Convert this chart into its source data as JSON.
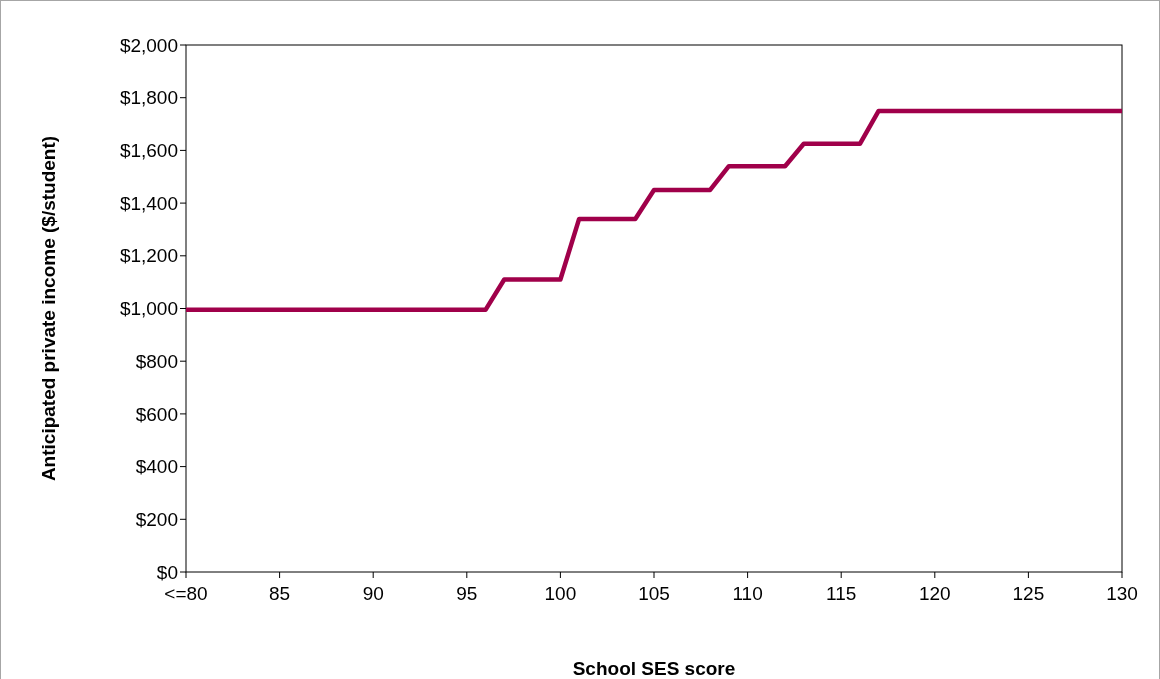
{
  "chart_data": {
    "type": "line",
    "xlabel": "School SES score",
    "ylabel": "Anticipated private income ($/student)",
    "x": [
      80,
      96,
      97,
      100,
      101,
      104,
      105,
      108,
      109,
      112,
      113,
      116,
      117,
      130
    ],
    "series": [
      {
        "color": "#a0004a",
        "values": [
          995,
          995,
          1110,
          1110,
          1340,
          1340,
          1450,
          1450,
          1540,
          1540,
          1625,
          1625,
          1750,
          1750
        ]
      }
    ],
    "xlim": [
      80,
      130
    ],
    "xticks": [
      {
        "value": 80,
        "label": "<=80"
      },
      85,
      90,
      95,
      100,
      105,
      110,
      115,
      120,
      125,
      130
    ],
    "ylim": [
      0,
      2000
    ],
    "yticks": [
      {
        "value": 0,
        "label": "$0"
      },
      {
        "value": 200,
        "label": "$200"
      },
      {
        "value": 400,
        "label": "$400"
      },
      {
        "value": 600,
        "label": "$600"
      },
      {
        "value": 800,
        "label": "$800"
      },
      {
        "value": 1000,
        "label": "$1,000"
      },
      {
        "value": 1200,
        "label": "$1,200"
      },
      {
        "value": 1400,
        "label": "$1,400"
      },
      {
        "value": 1600,
        "label": "$1,600"
      },
      {
        "value": 1800,
        "label": "$1,800"
      },
      {
        "value": 2000,
        "label": "$2,000"
      }
    ],
    "grid": false,
    "marker": "none",
    "line_style": "solid"
  }
}
